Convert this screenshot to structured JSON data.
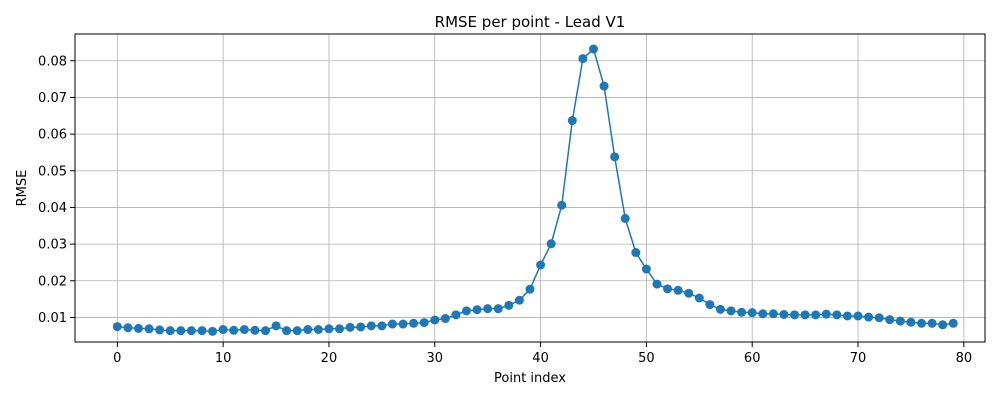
{
  "chart_data": {
    "type": "line",
    "title": "RMSE per point - Lead V1",
    "xlabel": "Point index",
    "ylabel": "RMSE",
    "xlim": [
      -4,
      82
    ],
    "ylim": [
      0.0033,
      0.0873
    ],
    "xticks": [
      0,
      10,
      20,
      30,
      40,
      50,
      60,
      70,
      80
    ],
    "yticks": [
      0.01,
      0.02,
      0.03,
      0.04,
      0.05,
      0.06,
      0.07,
      0.08
    ],
    "xtick_labels": [
      "0",
      "10",
      "20",
      "30",
      "40",
      "50",
      "60",
      "70",
      "80"
    ],
    "ytick_labels": [
      "0.01",
      "0.02",
      "0.03",
      "0.04",
      "0.05",
      "0.06",
      "0.07",
      "0.08"
    ],
    "grid": true,
    "line_color": "#1f77b4",
    "marker": "circle",
    "series": [
      {
        "x": [
          0,
          1,
          2,
          3,
          4,
          5,
          6,
          7,
          8,
          9,
          10,
          11,
          12,
          13,
          14,
          15,
          16,
          17,
          18,
          19,
          20,
          21,
          22,
          23,
          24,
          25,
          26,
          27,
          28,
          29,
          30,
          31,
          32,
          33,
          34,
          35,
          36,
          37,
          38,
          39,
          40,
          41,
          42,
          43,
          44,
          45,
          46,
          47,
          48,
          49,
          50,
          51,
          52,
          53,
          54,
          55,
          56,
          57,
          58,
          59,
          60,
          61,
          62,
          63,
          64,
          65,
          66,
          67,
          68,
          69,
          70,
          71,
          72,
          73,
          74,
          75,
          76,
          77,
          78,
          79
        ],
        "y": [
          0.0075,
          0.0072,
          0.007,
          0.0069,
          0.0066,
          0.0064,
          0.0064,
          0.0064,
          0.0064,
          0.0062,
          0.0067,
          0.0065,
          0.0067,
          0.0065,
          0.0064,
          0.0077,
          0.0064,
          0.0064,
          0.0067,
          0.0067,
          0.0069,
          0.0069,
          0.0073,
          0.0074,
          0.0077,
          0.0077,
          0.0082,
          0.0082,
          0.0084,
          0.0086,
          0.0093,
          0.0097,
          0.0107,
          0.0118,
          0.0121,
          0.0124,
          0.0124,
          0.0133,
          0.0147,
          0.0177,
          0.0243,
          0.0301,
          0.0406,
          0.0637,
          0.0806,
          0.0832,
          0.0731,
          0.0538,
          0.037,
          0.0277,
          0.0232,
          0.0191,
          0.0178,
          0.0174,
          0.0166,
          0.0153,
          0.0135,
          0.0122,
          0.0118,
          0.0114,
          0.0113,
          0.011,
          0.011,
          0.0108,
          0.0107,
          0.0107,
          0.0107,
          0.0109,
          0.0107,
          0.0104,
          0.0104,
          0.0101,
          0.0099,
          0.0094,
          0.009,
          0.0087,
          0.0084,
          0.0084,
          0.008,
          0.0084
        ]
      }
    ]
  }
}
